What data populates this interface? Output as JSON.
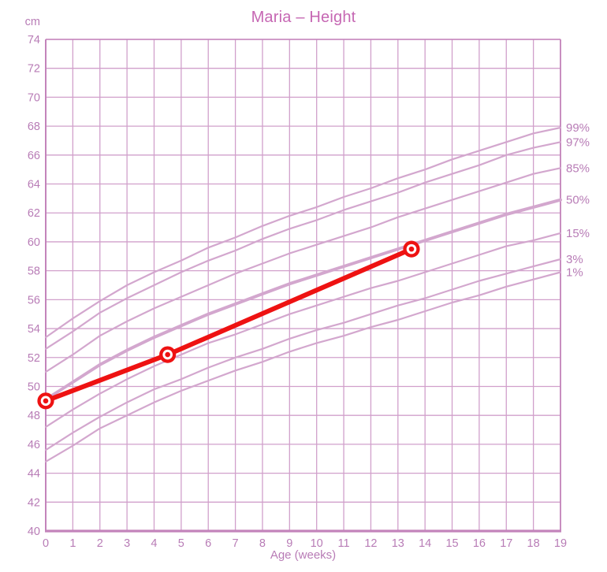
{
  "chart_data": {
    "type": "line",
    "title": "Maria – Height",
    "xlabel": "Age (weeks)",
    "ylabel": "cm",
    "xlim": [
      0,
      19
    ],
    "ylim": [
      40,
      74
    ],
    "grid": true,
    "legend_position": "right-edge-labels",
    "x_ticks": [
      0,
      1,
      2,
      3,
      4,
      5,
      6,
      7,
      8,
      9,
      10,
      11,
      12,
      13,
      14,
      15,
      16,
      17,
      18,
      19
    ],
    "y_ticks": [
      74,
      72,
      70,
      68,
      66,
      64,
      62,
      60,
      58,
      56,
      54,
      52,
      50,
      48,
      46,
      44,
      42,
      40
    ],
    "x": [
      0,
      1,
      2,
      3,
      4,
      5,
      6,
      7,
      8,
      9,
      10,
      11,
      12,
      13,
      14,
      15,
      16,
      17,
      18,
      19
    ],
    "series": [
      {
        "name": "p99",
        "label": "99%",
        "emphasis": false,
        "values": [
          53.4,
          54.7,
          55.9,
          57.0,
          57.9,
          58.7,
          59.6,
          60.3,
          61.1,
          61.8,
          62.4,
          63.1,
          63.7,
          64.4,
          65.0,
          65.7,
          66.3,
          66.9,
          67.5,
          67.9
        ]
      },
      {
        "name": "p97",
        "label": "97%",
        "emphasis": false,
        "values": [
          52.6,
          53.8,
          55.1,
          56.1,
          57.0,
          57.9,
          58.7,
          59.4,
          60.2,
          60.9,
          61.5,
          62.2,
          62.8,
          63.4,
          64.1,
          64.7,
          65.3,
          66.0,
          66.5,
          66.9
        ]
      },
      {
        "name": "p85",
        "label": "85%",
        "emphasis": false,
        "values": [
          51.0,
          52.2,
          53.5,
          54.5,
          55.4,
          56.2,
          57.0,
          57.8,
          58.5,
          59.2,
          59.8,
          60.4,
          61.0,
          61.7,
          62.3,
          62.9,
          63.5,
          64.1,
          64.7,
          65.1
        ]
      },
      {
        "name": "p50",
        "label": "50%",
        "emphasis": true,
        "values": [
          49.1,
          50.3,
          51.5,
          52.5,
          53.4,
          54.2,
          55.0,
          55.7,
          56.4,
          57.1,
          57.7,
          58.3,
          58.9,
          59.5,
          60.1,
          60.7,
          61.3,
          61.9,
          62.4,
          62.9
        ]
      },
      {
        "name": "p15",
        "label": "15%",
        "emphasis": false,
        "values": [
          47.2,
          48.4,
          49.5,
          50.5,
          51.4,
          52.2,
          53.0,
          53.6,
          54.3,
          55.0,
          55.6,
          56.2,
          56.8,
          57.3,
          57.9,
          58.5,
          59.1,
          59.7,
          60.1,
          60.6
        ]
      },
      {
        "name": "p3",
        "label": "3%",
        "emphasis": false,
        "values": [
          45.6,
          46.8,
          47.9,
          48.9,
          49.8,
          50.5,
          51.3,
          52.0,
          52.6,
          53.3,
          53.9,
          54.4,
          55.0,
          55.6,
          56.1,
          56.7,
          57.3,
          57.8,
          58.3,
          58.8
        ]
      },
      {
        "name": "p1",
        "label": "1%",
        "emphasis": false,
        "values": [
          44.8,
          45.9,
          47.1,
          48.0,
          48.9,
          49.7,
          50.4,
          51.1,
          51.7,
          52.4,
          53.0,
          53.5,
          54.1,
          54.6,
          55.2,
          55.8,
          56.3,
          56.9,
          57.4,
          57.9
        ]
      }
    ],
    "patient_series": {
      "name": "Maria",
      "points": [
        {
          "week": 0,
          "cm": 49.0
        },
        {
          "week": 4.5,
          "cm": 52.2
        },
        {
          "week": 13.5,
          "cm": 59.5
        }
      ]
    },
    "colors": {
      "title": "#c667b3",
      "labels": "#b87cb6",
      "grid": "#d1a0cb",
      "curve": "#d3a7ce",
      "axis": "#c384bb",
      "patient": "#ee1212",
      "marker_inner": "#ffffff",
      "background": "#ffffff"
    }
  }
}
